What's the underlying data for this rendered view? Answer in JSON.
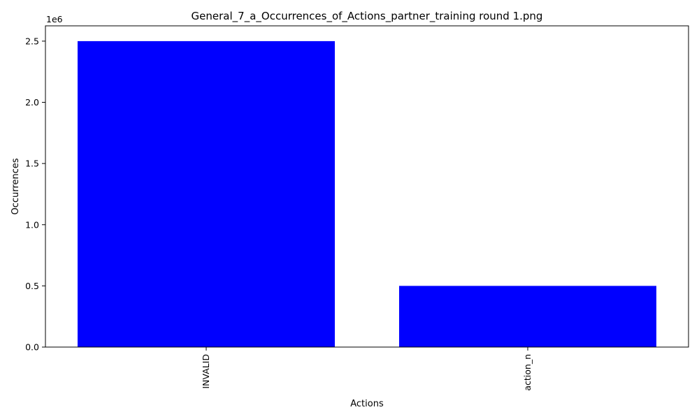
{
  "chart_data": {
    "type": "bar",
    "title": "General_7_a_Occurrences_of_Actions_partner_training round 1.png",
    "xlabel": "Actions",
    "ylabel": "Occurrences",
    "offset_label": "1e6",
    "categories": [
      "INVALID",
      "action_n"
    ],
    "values": [
      2500000,
      500000
    ],
    "ylim": [
      0,
      2625000
    ],
    "yticks": [
      0,
      500000,
      1000000,
      1500000,
      2000000,
      2500000
    ],
    "ytick_labels": [
      "0.0",
      "0.5",
      "1.0",
      "1.5",
      "2.0",
      "2.5"
    ],
    "bar_color": "#0000ff",
    "grid": false,
    "legend": false,
    "x_tick_rotation": "vertical"
  }
}
